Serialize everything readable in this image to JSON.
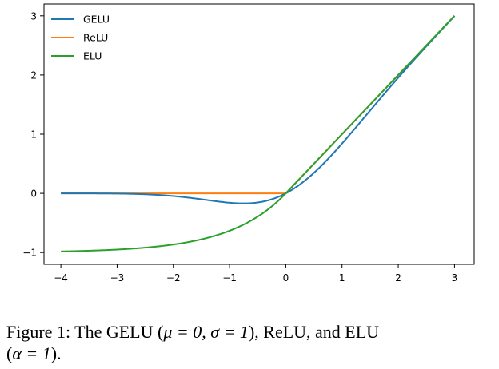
{
  "chart_data": {
    "type": "line",
    "x_range": [
      -4,
      3
    ],
    "y_range": [
      -1,
      3
    ],
    "xlim": [
      -4.3,
      3.35
    ],
    "ylim": [
      -1.2,
      3.2
    ],
    "x_ticks": [
      -4,
      -3,
      -2,
      -1,
      0,
      1,
      2,
      3
    ],
    "y_ticks": [
      -1,
      0,
      1,
      2,
      3
    ],
    "x_tick_labels": [
      "−4",
      "−3",
      "−2",
      "−1",
      "0",
      "1",
      "2",
      "3"
    ],
    "y_tick_labels": [
      "−1",
      "0",
      "1",
      "2",
      "3"
    ],
    "grid": false,
    "legend_position": "top-left",
    "series": [
      {
        "name": "GELU",
        "color": "#1f77b4",
        "function": "x * Phi(x)"
      },
      {
        "name": "ReLU",
        "color": "#ff7f0e",
        "function": "max(0, x)"
      },
      {
        "name": "ELU",
        "color": "#2ca02c",
        "function": "x > 0 ? x : exp(x) - 1"
      }
    ]
  },
  "caption": {
    "prefix": "Figure 1: The GELU (",
    "mu": "μ = 0, σ = 1",
    "middle": "), ReLU, and ELU",
    "line2_open": "(",
    "alpha": "α = 1",
    "line2_close": ")."
  }
}
